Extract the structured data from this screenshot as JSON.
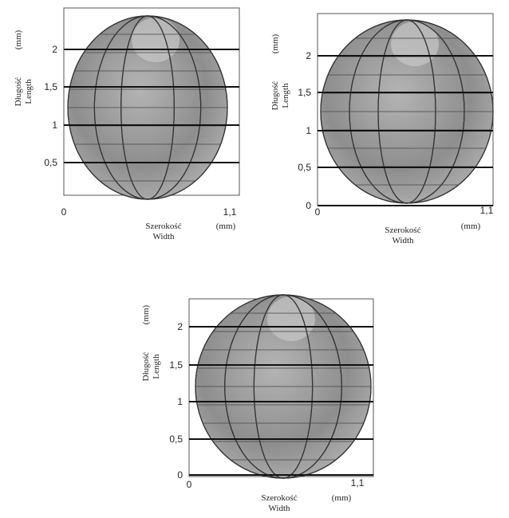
{
  "panels": [
    {
      "y_label": "Długość",
      "y_label_en": "Length",
      "y_unit": "(mm)",
      "y_ticks": [
        "2",
        "1,5",
        "1",
        "0,5"
      ],
      "x_ticks": [
        "0",
        "1,1"
      ],
      "x_label": "Szerokość",
      "x_label_en": "Width",
      "x_unit": "(mm)"
    },
    {
      "y_label": "Długość",
      "y_label_en": "Length",
      "y_unit": "(mm)",
      "y_ticks": [
        "2",
        "1,5",
        "1",
        "0,5",
        "0"
      ],
      "x_ticks": [
        "0",
        "1,1"
      ],
      "x_label": "Szerokość",
      "x_label_en": "Width",
      "x_unit": "(mm)"
    },
    {
      "y_label": "Długość",
      "y_label_en": "Length",
      "y_unit": "(mm)",
      "y_ticks": [
        "2",
        "1,5",
        "1",
        "0,5",
        "0"
      ],
      "x_ticks": [
        "0",
        "1,1"
      ],
      "x_label": "Szerokość",
      "x_label_en": "Width",
      "x_unit": "(mm)"
    }
  ]
}
